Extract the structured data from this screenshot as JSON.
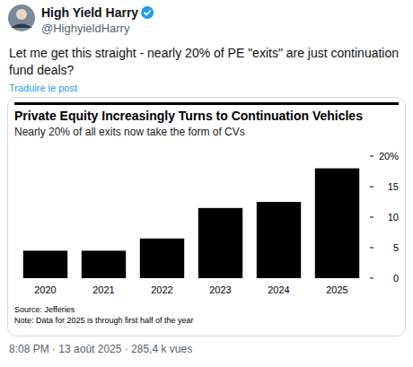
{
  "post": {
    "author": "High Yield Harry",
    "handle": "@HighyieldHarry",
    "text": "Let me get this straight - nearly 20% of PE \"exits\" are just continuation fund deals?",
    "translate": "Traduire le post",
    "meta": "8:08 PM · 13 août 2025 · 285,4 k vues"
  },
  "chart_data": {
    "type": "bar",
    "title": "Private Equity Increasingly Turns to Continuation Vehicles",
    "subtitle": "Nearly 20% of all exits now take the form of CVs",
    "categories": [
      "2020",
      "2021",
      "2022",
      "2023",
      "2024",
      "2025"
    ],
    "values": [
      4.5,
      4.5,
      6.5,
      11.5,
      12.5,
      18
    ],
    "color": "#000000",
    "ylim": [
      0,
      20
    ],
    "yticks": [
      0,
      5,
      10,
      15,
      {
        "value": 20,
        "label": "20%"
      }
    ],
    "grid": false,
    "source": "Source: Jefferies",
    "note": "Note: Data for 2025 is through first half of the year"
  }
}
